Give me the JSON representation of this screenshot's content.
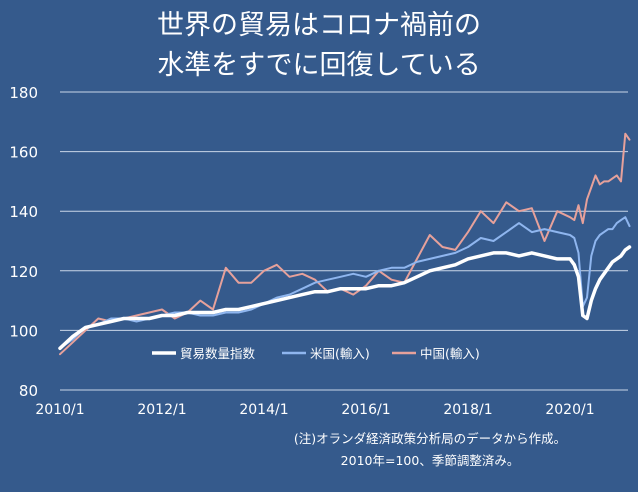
{
  "title": {
    "line1": "世界の貿易はコロナ禍前の",
    "line2": "水準をすでに回復している"
  },
  "note": {
    "line1": "(注)オランダ経済政策分析局のデータから作成。",
    "line2": "2010年=100、季節調整済み。"
  },
  "chart_data": {
    "type": "line",
    "title": "世界の貿易はコロナ禍前の水準をすでに回復している",
    "xlabel": "",
    "ylabel": "",
    "ylim": [
      80,
      180
    ],
    "yticks": [
      "80",
      "100",
      "120",
      "140",
      "160",
      "180"
    ],
    "xlim": [
      "2010/1",
      "2021/3"
    ],
    "xticks": [
      "2010/1",
      "2012/1",
      "2014/1",
      "2016/1",
      "2018/1",
      "2020/1"
    ],
    "grid": "horizontal",
    "legend_position": "inside-left",
    "x": [
      "2010/1",
      "2010/4",
      "2010/7",
      "2010/10",
      "2011/1",
      "2011/4",
      "2011/7",
      "2011/10",
      "2012/1",
      "2012/4",
      "2012/7",
      "2012/10",
      "2013/1",
      "2013/4",
      "2013/7",
      "2013/10",
      "2014/1",
      "2014/4",
      "2014/7",
      "2014/10",
      "2015/1",
      "2015/4",
      "2015/7",
      "2015/10",
      "2016/1",
      "2016/4",
      "2016/7",
      "2016/10",
      "2017/1",
      "2017/4",
      "2017/7",
      "2017/10",
      "2018/1",
      "2018/4",
      "2018/7",
      "2018/10",
      "2019/1",
      "2019/4",
      "2019/7",
      "2019/10",
      "2020/1",
      "2020/2",
      "2020/3",
      "2020/4",
      "2020/5",
      "2020/6",
      "2020/7",
      "2020/8",
      "2020/9",
      "2020/10",
      "2020/11",
      "2020/12",
      "2021/1",
      "2021/2",
      "2021/3"
    ],
    "series": [
      {
        "name": "貿易数量指数",
        "color": "#ffffff",
        "values": [
          94,
          98,
          101,
          102,
          103,
          104,
          104,
          104,
          105,
          105,
          106,
          106,
          106,
          107,
          107,
          108,
          109,
          110,
          111,
          112,
          113,
          113,
          114,
          114,
          114,
          115,
          115,
          116,
          118,
          120,
          121,
          122,
          124,
          125,
          126,
          126,
          125,
          126,
          125,
          124,
          124,
          122,
          118,
          105,
          104,
          110,
          114,
          117,
          119,
          121,
          123,
          124,
          125,
          127,
          128
        ]
      },
      {
        "name": "米国(輸入)",
        "color": "#8fb6ef",
        "values": [
          94,
          97,
          101,
          102,
          104,
          104,
          103,
          104,
          105,
          106,
          106,
          105,
          105,
          106,
          106,
          107,
          109,
          111,
          112,
          114,
          116,
          117,
          118,
          119,
          118,
          120,
          121,
          121,
          123,
          124,
          125,
          126,
          128,
          131,
          130,
          133,
          136,
          133,
          134,
          133,
          132,
          131,
          126,
          108,
          111,
          125,
          130,
          132,
          133,
          134,
          134,
          136,
          137,
          138,
          135
        ]
      },
      {
        "name": "中国(輸入)",
        "color": "#e6a19b",
        "values": [
          92,
          96,
          100,
          104,
          103,
          104,
          105,
          106,
          107,
          104,
          106,
          110,
          107,
          121,
          116,
          116,
          120,
          122,
          118,
          119,
          117,
          113,
          114,
          112,
          115,
          120,
          117,
          116,
          124,
          132,
          128,
          127,
          133,
          140,
          136,
          143,
          140,
          141,
          130,
          140,
          138,
          137,
          142,
          136,
          144,
          148,
          152,
          149,
          150,
          150,
          151,
          152,
          150,
          166,
          164
        ]
      }
    ]
  }
}
